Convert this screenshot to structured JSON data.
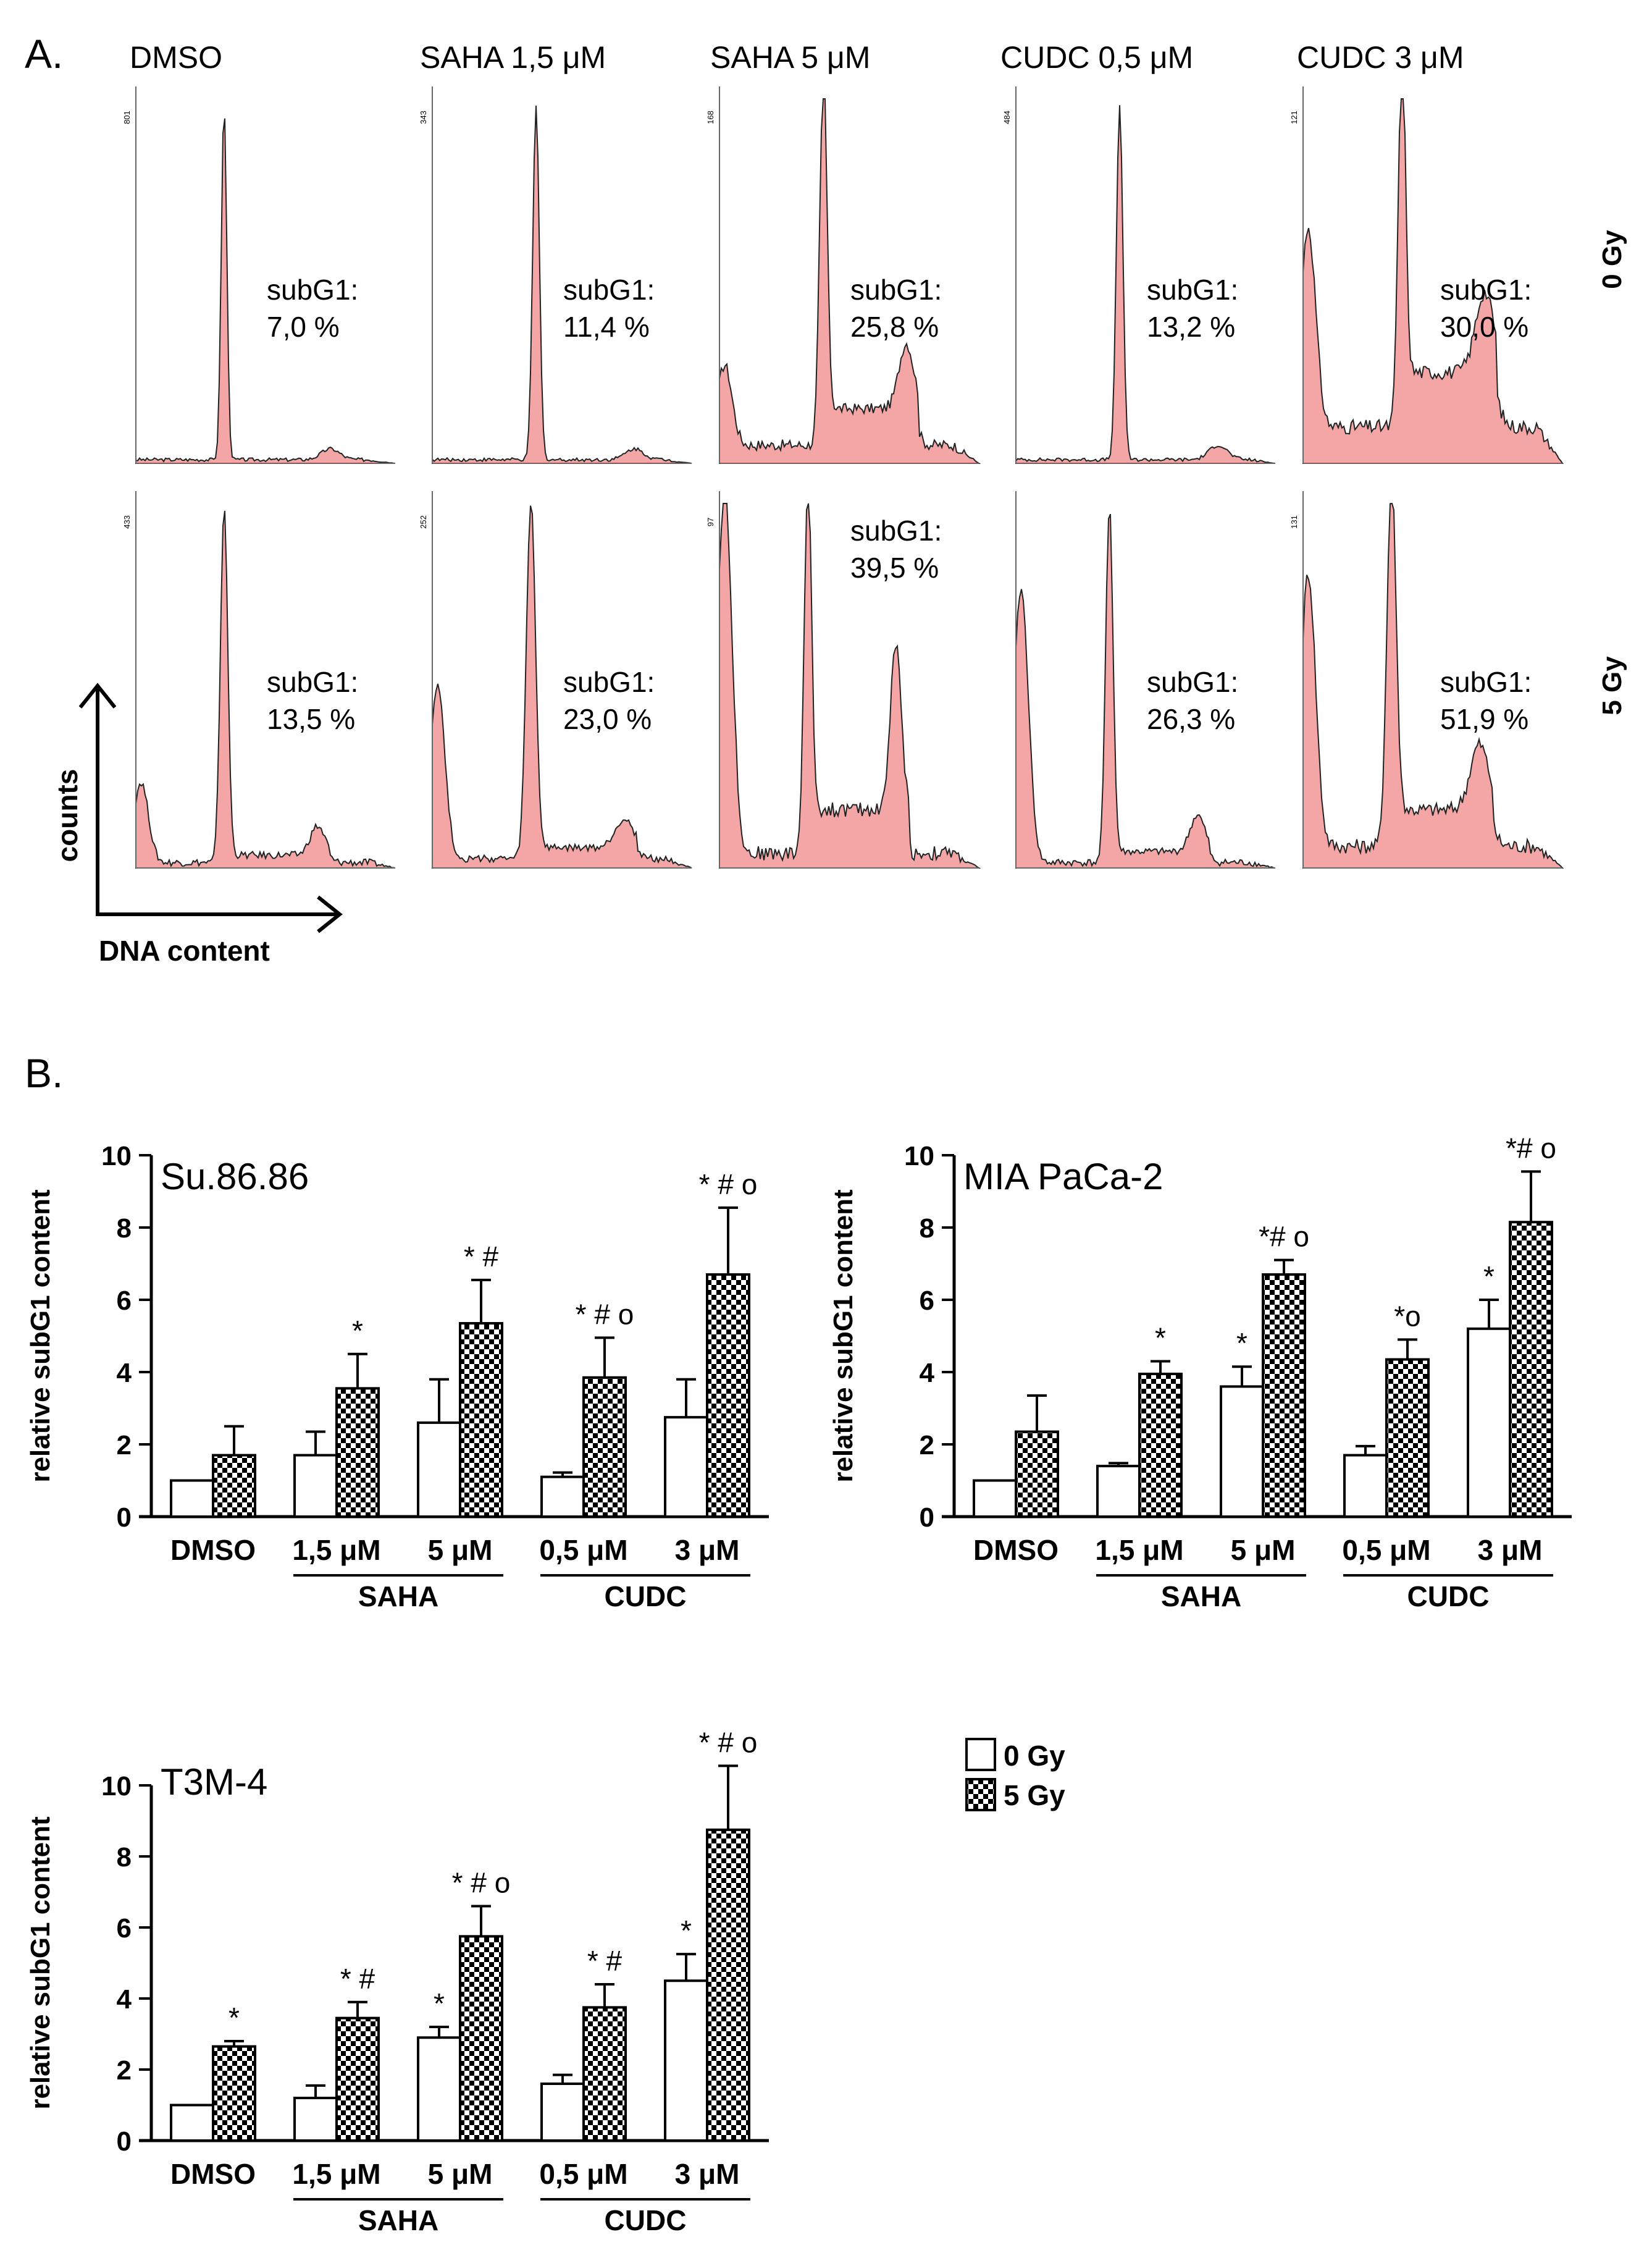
{
  "panel_a": {
    "label": "A.",
    "columns": [
      "DMSO",
      "SAHA 1,5 μM",
      "SAHA 5 μM",
      "CUDC 0,5 μM",
      "CUDC 3 μM"
    ],
    "rows": [
      "0 Gy",
      "5 Gy"
    ],
    "y_axis_label": "counts",
    "x_axis_label": "DNA content",
    "histograms": [
      [
        {
          "ymax": "801",
          "subg1_label": "subG1:",
          "subg1": "7,0 %"
        },
        {
          "ymax": "343",
          "subg1_label": "subG1:",
          "subg1": "11,4 %"
        },
        {
          "ymax": "168",
          "subg1_label": "subG1:",
          "subg1": "25,8 %"
        },
        {
          "ymax": "484",
          "subg1_label": "subG1:",
          "subg1": "13,2 %"
        },
        {
          "ymax": "121",
          "subg1_label": "subG1:",
          "subg1": "30,0 %"
        }
      ],
      [
        {
          "ymax": "433",
          "subg1_label": "subG1:",
          "subg1": "13,5 %"
        },
        {
          "ymax": "252",
          "subg1_label": "subG1:",
          "subg1": "23,0 %"
        },
        {
          "ymax": "97",
          "subg1_label": "subG1:",
          "subg1": "39,5 %"
        },
        {
          "ymax": "",
          "subg1_label": "subG1:",
          "subg1": "26,3 %"
        },
        {
          "ymax": "131",
          "subg1_label": "subG1:",
          "subg1": "51,9 %"
        }
      ]
    ]
  },
  "panel_b": {
    "label": "B.",
    "legend": [
      "0 Gy",
      "5 Gy"
    ],
    "groups": [
      "SAHA",
      "CUDC"
    ]
  },
  "colors": {
    "histogram_fill": "#f4a5a5",
    "histogram_line": "#222222",
    "bar_0gy": "#ffffff",
    "axis": "#000000"
  },
  "chart_data": [
    {
      "type": "bar",
      "title": "Su.86.86",
      "ylabel": "relative subG1 content",
      "ylim": [
        0,
        10
      ],
      "yticks": [
        "0",
        "2",
        "4",
        "6",
        "8",
        "10"
      ],
      "categories": [
        "DMSO",
        "1,5 μM",
        "5 μM",
        "0,5 μM",
        "3 μM"
      ],
      "series": [
        {
          "name": "0 Gy",
          "values": [
            1.0,
            1.7,
            2.6,
            1.1,
            2.75
          ],
          "errors": [
            0,
            0.65,
            1.2,
            0.12,
            1.05
          ],
          "annotations": [
            "",
            "",
            "",
            "",
            ""
          ]
        },
        {
          "name": "5 Gy",
          "values": [
            1.7,
            3.55,
            5.35,
            3.85,
            6.7
          ],
          "errors": [
            0.8,
            0.95,
            1.2,
            1.1,
            1.85
          ],
          "annotations": [
            "",
            "*",
            "* #",
            "* # o",
            "* # o"
          ]
        }
      ]
    },
    {
      "type": "bar",
      "title": "MIA PaCa-2",
      "ylabel": "relative subG1 content",
      "ylim": [
        0,
        10
      ],
      "yticks": [
        "0",
        "2",
        "4",
        "6",
        "8",
        "10"
      ],
      "categories": [
        "DMSO",
        "1,5 μM",
        "5 μM",
        "0,5 μM",
        "3 μM"
      ],
      "series": [
        {
          "name": "0 Gy",
          "values": [
            1.0,
            1.4,
            3.6,
            1.7,
            5.2
          ],
          "errors": [
            0,
            0.08,
            0.55,
            0.25,
            0.8
          ],
          "annotations": [
            "",
            "",
            "*",
            "",
            "*"
          ]
        },
        {
          "name": "5 Gy",
          "values": [
            2.35,
            3.95,
            6.7,
            4.35,
            8.15
          ],
          "errors": [
            1.0,
            0.35,
            0.4,
            0.55,
            1.4
          ],
          "annotations": [
            "",
            "*",
            "*# o",
            "*o",
            "*# o"
          ]
        }
      ]
    },
    {
      "type": "bar",
      "title": "T3M-4",
      "ylabel": "relative subG1 content",
      "ylim": [
        0,
        10
      ],
      "yticks": [
        "0",
        "2",
        "4",
        "6",
        "8",
        "10"
      ],
      "categories": [
        "DMSO",
        "1,5 μM",
        "5 μM",
        "0,5 μM",
        "3 μM"
      ],
      "series": [
        {
          "name": "0 Gy",
          "values": [
            1.0,
            1.2,
            2.9,
            1.6,
            4.5
          ],
          "errors": [
            0,
            0.35,
            0.3,
            0.25,
            0.75
          ],
          "annotations": [
            "",
            "",
            "*",
            "",
            "*"
          ]
        },
        {
          "name": "5 Gy",
          "values": [
            2.65,
            3.45,
            5.75,
            3.75,
            8.75
          ],
          "errors": [
            0.15,
            0.45,
            0.85,
            0.65,
            1.8
          ],
          "annotations": [
            "*",
            "* #",
            "* # o",
            "* #",
            "* # o"
          ]
        }
      ]
    }
  ]
}
